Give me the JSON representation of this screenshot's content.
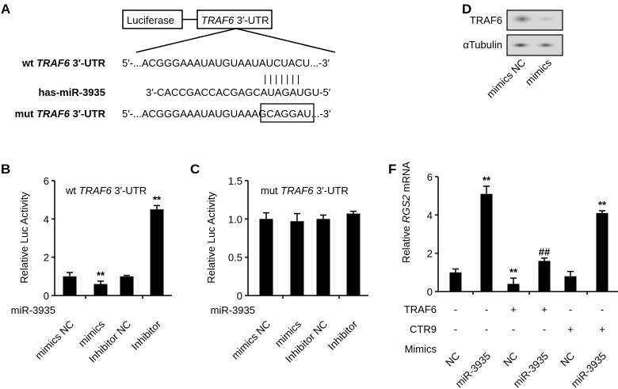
{
  "panel_a": {
    "letter": "A",
    "construct": {
      "box1": "Luciferase",
      "box2_gene": "TRAF6",
      "box2_suffix": " 3′-UTR"
    },
    "rows": [
      {
        "label_pre": "wt ",
        "label_gene": "TRAF6",
        "label_post": " 3′-UTR",
        "sequence": "5′-...ACGGGAAAUAUGUAAUAUCUACU...-3′"
      },
      {
        "label_pre": "has-miR-3935",
        "label_gene": "",
        "label_post": "",
        "sequence": "3′-CACCGACCACGAGCAUAGAUGU-5′"
      },
      {
        "label_pre": "mut ",
        "label_gene": "TRAF6",
        "label_post": " 3′-UTR",
        "sequence": "5′-...ACGGGAAAUAUGUAAAGCAGGAU...-3′"
      }
    ],
    "pairing_marks": "| | | | | | |"
  },
  "panel_d": {
    "letter": "D",
    "blots": [
      "TRAF6",
      "αTubulin"
    ],
    "lanes": [
      "mimics NC",
      "mimics"
    ]
  },
  "chart_data": [
    {
      "panel": "B",
      "type": "bar",
      "title_pre": "wt ",
      "title_gene": "TRAF6",
      "title_post": " 3′-UTR",
      "ylabel": "Relative Luc Activity",
      "xlabel_prefix": "miR-3935",
      "categories": [
        "mimics NC",
        "mimics",
        "Inhibitor NC",
        "Inhibitor"
      ],
      "values": [
        1.0,
        0.6,
        1.0,
        4.5
      ],
      "errors": [
        0.2,
        0.15,
        0.05,
        0.2
      ],
      "annotations": [
        "",
        "**",
        "",
        "**"
      ],
      "ylim": [
        0,
        6
      ],
      "yticks": [
        "0",
        "2",
        "4",
        "6"
      ],
      "ytick_values": [
        0,
        2,
        4,
        6
      ]
    },
    {
      "panel": "C",
      "type": "bar",
      "title_pre": "mut ",
      "title_gene": "TRAF6",
      "title_post": " 3′-UTR",
      "ylabel": "Relative Luc Activity",
      "xlabel_prefix": "miR-3935",
      "categories": [
        "mimics NC",
        "mimics",
        "Inhibitor NC",
        "Inhibitor"
      ],
      "values": [
        1.0,
        0.97,
        1.0,
        1.07
      ],
      "errors": [
        0.08,
        0.1,
        0.05,
        0.03
      ],
      "annotations": [
        "",
        "",
        "",
        ""
      ],
      "ylim": [
        0,
        1.5
      ],
      "yticks": [
        "0",
        "0.5",
        "1.0",
        "1.5"
      ],
      "ytick_values": [
        0,
        0.5,
        1.0,
        1.5
      ]
    },
    {
      "panel": "F",
      "type": "bar",
      "ylabel_pre": "Relative ",
      "ylabel_gene": "RGS2",
      "ylabel_post": " mRNA",
      "rows": [
        {
          "label": "TRAF6",
          "values": [
            "-",
            "-",
            "+",
            "+",
            "-",
            "-"
          ]
        },
        {
          "label": "CTR9",
          "values": [
            "-",
            "-",
            "-",
            "-",
            "+",
            "+"
          ]
        }
      ],
      "mimics_label": "Mimics",
      "categories": [
        "NC",
        "miR-3935",
        "NC",
        "miR-3935",
        "NC",
        "miR-3935"
      ],
      "values": [
        1.0,
        5.1,
        0.4,
        1.6,
        0.8,
        4.1
      ],
      "errors": [
        0.18,
        0.4,
        0.3,
        0.15,
        0.25,
        0.12
      ],
      "annotations": [
        "",
        "**",
        "**",
        "##",
        "",
        "**"
      ],
      "ylim": [
        0,
        6
      ],
      "yticks": [
        "0",
        "2",
        "4",
        "6"
      ],
      "ytick_values": [
        0,
        2,
        4,
        6
      ]
    }
  ]
}
